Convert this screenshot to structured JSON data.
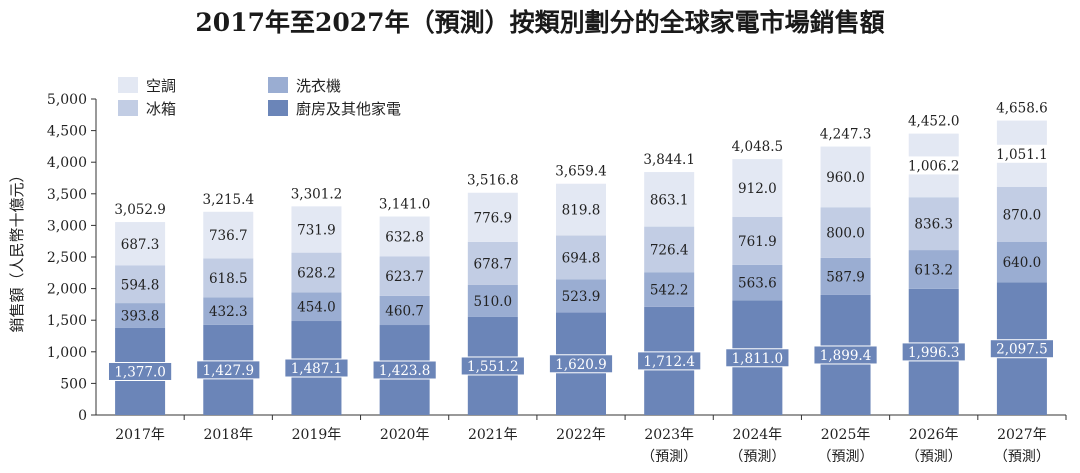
{
  "chart_data": {
    "type": "bar",
    "stacked": true,
    "title": "2017年至2027年（預測）按類別劃分的全球家電市場銷售額",
    "ylabel": "銷售額（人民幣十億元）",
    "xlabel": "",
    "ylim": [
      0,
      5000
    ],
    "yticks": [
      "0",
      "500",
      "1,000",
      "1,500",
      "2,000",
      "2,500",
      "3,000",
      "3,500",
      "4,000",
      "4,500",
      "5,000"
    ],
    "categories": [
      "2017年",
      "2018年",
      "2019年",
      "2020年",
      "2021年",
      "2022年",
      "2023年",
      "2024年",
      "2025年",
      "2026年",
      "2027年"
    ],
    "category_sublabels": [
      "",
      "",
      "",
      "",
      "",
      "",
      "（預測）",
      "（預測）",
      "（預測）",
      "（預測）",
      "（預測）"
    ],
    "series": [
      {
        "name": "廚房及其他家電",
        "color": "#6b85b8",
        "values": [
          1377.0,
          1427.9,
          1487.1,
          1423.8,
          1551.2,
          1620.9,
          1712.4,
          1811.0,
          1899.4,
          1996.3,
          2097.5
        ],
        "labels": [
          "1,377.0",
          "1,427.9",
          "1,487.1",
          "1,423.8",
          "1,551.2",
          "1,620.9",
          "1,712.4",
          "1,811.0",
          "1,899.4",
          "1,996.3",
          "2,097.5"
        ]
      },
      {
        "name": "洗衣機",
        "color": "#9aadd2",
        "values": [
          393.8,
          432.3,
          454.0,
          460.7,
          510.0,
          523.9,
          542.2,
          563.6,
          587.9,
          613.2,
          640.0
        ],
        "labels": [
          "393.8",
          "432.3",
          "454.0",
          "460.7",
          "510.0",
          "523.9",
          "542.2",
          "563.6",
          "587.9",
          "613.2",
          "640.0"
        ]
      },
      {
        "name": "冰箱",
        "color": "#c2cde4",
        "values": [
          594.8,
          618.5,
          628.2,
          623.7,
          678.7,
          694.8,
          726.4,
          761.9,
          800.0,
          836.3,
          870.0
        ],
        "labels": [
          "594.8",
          "618.5",
          "628.2",
          "623.7",
          "678.7",
          "694.8",
          "726.4",
          "761.9",
          "800.0",
          "836.3",
          "870.0"
        ]
      },
      {
        "name": "空調",
        "color": "#e3e8f3",
        "values": [
          687.3,
          736.7,
          731.9,
          632.8,
          776.9,
          819.8,
          863.1,
          912.0,
          960.0,
          1006.2,
          1051.1
        ],
        "labels": [
          "687.3",
          "736.7",
          "731.9",
          "632.8",
          "776.9",
          "819.8",
          "863.1",
          "912.0",
          "960.0",
          "1,006.2",
          "1,051.1"
        ]
      }
    ],
    "totals": [
      3052.9,
      3215.4,
      3301.2,
      3141.0,
      3516.8,
      3659.4,
      3844.1,
      4048.5,
      4247.3,
      4452.0,
      4658.6
    ],
    "total_labels": [
      "3,052.9",
      "3,215.4",
      "3,301.2",
      "3,141.0",
      "3,516.8",
      "3,659.4",
      "3,844.1",
      "4,048.5",
      "4,247.3",
      "4,452.0",
      "4,658.6"
    ],
    "legend": [
      {
        "name": "空調",
        "color": "#e3e8f3"
      },
      {
        "name": "洗衣機",
        "color": "#9aadd2"
      },
      {
        "name": "冰箱",
        "color": "#c2cde4"
      },
      {
        "name": "廚房及其他家電",
        "color": "#6b85b8"
      }
    ],
    "legend_position": "top-left",
    "grid": false
  }
}
